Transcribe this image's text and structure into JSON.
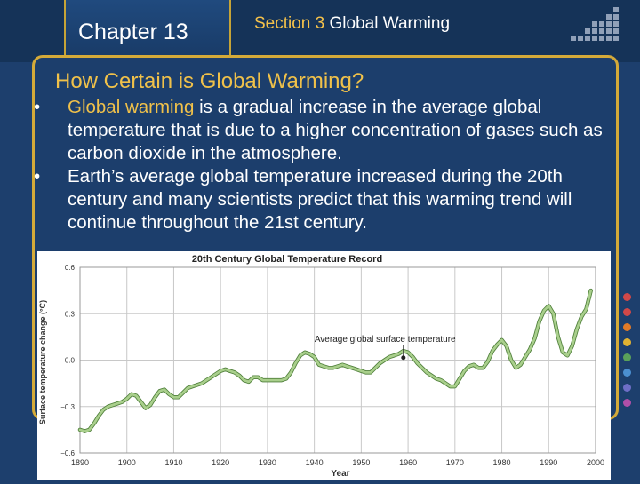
{
  "header": {
    "chapter": "Chapter 13",
    "section_prefix": "Section 3",
    "section_title": "Global Warming"
  },
  "slide": {
    "heading": "How Certain is Global Warming?",
    "bullets": [
      {
        "mark": "•",
        "term": "Global warming",
        "text": " is a gradual increase in the average global temperature that is due to a higher concentration of gases such as carbon dioxide in the atmosphere."
      },
      {
        "mark": "•",
        "term": "",
        "text": "Earth’s average global temperature increased during the 20th century and many scientists predict that this warming trend will continue throughout the 21st century."
      }
    ]
  },
  "colors": {
    "background": "#1d3f6d",
    "accent": "#f0c14a",
    "frame": "#d4aa39",
    "line": "#a9cf8c",
    "side_dots": [
      "#d14848",
      "#d14848",
      "#e07a28",
      "#e0b232",
      "#5aa15a",
      "#4b8fd0",
      "#6e6ec6",
      "#b04fa8"
    ]
  },
  "chart_data": {
    "type": "line",
    "title": "20th Century Global Temperature Record",
    "xlabel": "Year",
    "ylabel": "Surface temperature change (°C)",
    "xlim": [
      1890,
      2000
    ],
    "ylim": [
      -0.6,
      0.6
    ],
    "xticks": [
      1890,
      1900,
      1910,
      1920,
      1930,
      1940,
      1950,
      1960,
      1970,
      1980,
      1990,
      2000
    ],
    "yticks": [
      "0.6",
      "0.3",
      "0.0",
      "−0.3",
      "−0.6"
    ],
    "ytick_values": [
      0.6,
      0.3,
      0,
      -0.3,
      -0.6
    ],
    "grid": true,
    "annotation": {
      "text": "Average global surface temperature",
      "x": 1959,
      "y": 0.05
    },
    "series": [
      {
        "name": "Average global surface temperature",
        "x": [
          1890,
          1891,
          1892,
          1893,
          1894,
          1895,
          1896,
          1897,
          1898,
          1899,
          1900,
          1901,
          1902,
          1903,
          1904,
          1905,
          1906,
          1907,
          1908,
          1909,
          1910,
          1911,
          1912,
          1913,
          1914,
          1915,
          1916,
          1917,
          1918,
          1919,
          1920,
          1921,
          1922,
          1923,
          1924,
          1925,
          1926,
          1927,
          1928,
          1929,
          1930,
          1931,
          1932,
          1933,
          1934,
          1935,
          1936,
          1937,
          1938,
          1939,
          1940,
          1941,
          1942,
          1943,
          1944,
          1945,
          1946,
          1947,
          1948,
          1949,
          1950,
          1951,
          1952,
          1953,
          1954,
          1955,
          1956,
          1957,
          1958,
          1959,
          1960,
          1961,
          1962,
          1963,
          1964,
          1965,
          1966,
          1967,
          1968,
          1969,
          1970,
          1971,
          1972,
          1973,
          1974,
          1975,
          1976,
          1977,
          1978,
          1979,
          1980,
          1981,
          1982,
          1983,
          1984,
          1985,
          1986,
          1987,
          1988,
          1989,
          1990,
          1991,
          1992,
          1993,
          1994,
          1995,
          1996,
          1997,
          1998,
          1999
        ],
        "y": [
          -0.45,
          -0.46,
          -0.45,
          -0.41,
          -0.36,
          -0.32,
          -0.3,
          -0.29,
          -0.28,
          -0.27,
          -0.25,
          -0.22,
          -0.23,
          -0.27,
          -0.31,
          -0.29,
          -0.24,
          -0.2,
          -0.19,
          -0.22,
          -0.24,
          -0.24,
          -0.21,
          -0.18,
          -0.17,
          -0.16,
          -0.15,
          -0.13,
          -0.11,
          -0.09,
          -0.07,
          -0.06,
          -0.07,
          -0.08,
          -0.1,
          -0.13,
          -0.14,
          -0.11,
          -0.11,
          -0.13,
          -0.13,
          -0.13,
          -0.13,
          -0.13,
          -0.12,
          -0.08,
          -0.02,
          0.03,
          0.05,
          0.04,
          0.02,
          -0.03,
          -0.04,
          -0.05,
          -0.05,
          -0.04,
          -0.03,
          -0.04,
          -0.05,
          -0.06,
          -0.07,
          -0.08,
          -0.08,
          -0.05,
          -0.02,
          0.0,
          0.02,
          0.03,
          0.04,
          0.06,
          0.05,
          0.02,
          -0.02,
          -0.05,
          -0.08,
          -0.1,
          -0.12,
          -0.13,
          -0.15,
          -0.17,
          -0.17,
          -0.12,
          -0.07,
          -0.04,
          -0.03,
          -0.05,
          -0.05,
          -0.01,
          0.06,
          0.1,
          0.13,
          0.09,
          0.0,
          -0.05,
          -0.03,
          0.02,
          0.07,
          0.14,
          0.25,
          0.32,
          0.35,
          0.3,
          0.15,
          0.05,
          0.03,
          0.09,
          0.2,
          0.28,
          0.33,
          0.45
        ]
      }
    ]
  }
}
